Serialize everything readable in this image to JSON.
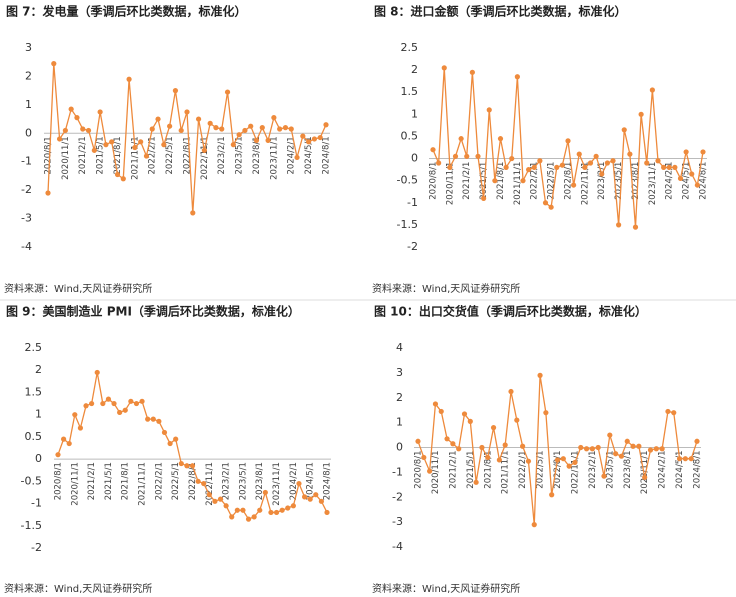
{
  "chart_data": [
    {
      "type": "line",
      "title": "图 7：发电量（季调后环比类数据，标准化）",
      "source": "资料来源：Wind,天风证券研究所",
      "categories": [
        "2020/8/1",
        null,
        null,
        "2020/11/1",
        null,
        null,
        "2021/2/1",
        null,
        null,
        "2021/5/1",
        null,
        null,
        "2021/8/1",
        null,
        null,
        "2021/11/1",
        null,
        null,
        "2022/2/1",
        null,
        null,
        "2022/5/1",
        null,
        null,
        "2022/8/1",
        null,
        null,
        "2022/11/1",
        null,
        null,
        "2023/2/1",
        null,
        null,
        "2023/5/1",
        null,
        null,
        "2023/8/1",
        null,
        null,
        "2023/11/1",
        null,
        null,
        "2024/2/1",
        null,
        null,
        "2024/5/1",
        null,
        null,
        "2024/8/1"
      ],
      "series": [
        {
          "color": "#ee8a3c",
          "values": [
            -2.1,
            2.45,
            -0.2,
            0.1,
            0.85,
            0.55,
            0.15,
            0.1,
            -0.6,
            0.75,
            -0.4,
            -0.3,
            -1.45,
            -1.6,
            1.9,
            -0.5,
            -0.3,
            -0.8,
            0.15,
            0.5,
            -0.4,
            0.25,
            1.5,
            0.1,
            0.75,
            -2.8,
            0.5,
            -0.6,
            0.35,
            0.2,
            0.15,
            1.45,
            -0.4,
            -0.05,
            0.1,
            0.25,
            -0.25,
            0.2,
            -0.25,
            0.55,
            0.15,
            0.2,
            0.15,
            -0.85,
            -0.1,
            -0.3,
            -0.2,
            -0.15,
            0.3
          ]
        }
      ],
      "ylim": [
        -4,
        3
      ],
      "yticks": [
        -4,
        -3,
        -2,
        -1,
        0,
        1,
        2,
        3
      ]
    },
    {
      "type": "line",
      "title": "图 8：进口金额（季调后环比类数据，标准化）",
      "source": "资料来源：Wind,天风证券研究所",
      "categories": [
        "2020/8/1",
        null,
        null,
        "2020/11/1",
        null,
        null,
        "2021/2/1",
        null,
        null,
        "2021/5/1",
        null,
        null,
        "2021/8/1",
        null,
        null,
        "2021/11/1",
        null,
        null,
        "2022/2/1",
        null,
        null,
        "2022/5/1",
        null,
        null,
        "2022/8/1",
        null,
        null,
        "2022/11/1",
        null,
        null,
        "2023/2/1",
        null,
        null,
        "2023/5/1",
        null,
        null,
        "2023/8/1",
        null,
        null,
        "2023/11/1",
        null,
        null,
        "2024/2/1",
        null,
        null,
        "2024/5/1",
        null,
        null,
        "2024/8/1"
      ],
      "series": [
        {
          "color": "#ee8a3c",
          "values": [
            0.2,
            -0.1,
            2.05,
            -0.2,
            0.05,
            0.45,
            0.05,
            1.95,
            0.05,
            -0.9,
            1.1,
            -0.5,
            0.45,
            -0.2,
            0.0,
            1.85,
            -0.5,
            -0.25,
            -0.2,
            -0.05,
            -1.0,
            -1.1,
            -0.2,
            -0.15,
            0.4,
            -0.6,
            0.1,
            -0.2,
            -0.1,
            0.05,
            -0.35,
            -0.1,
            -0.05,
            -1.5,
            0.65,
            0.1,
            -1.55,
            1.0,
            -0.1,
            1.55,
            -0.05,
            -0.2,
            -0.2,
            -0.2,
            -0.45,
            0.15,
            -0.35,
            -0.6,
            0.15
          ]
        }
      ],
      "ylim": [
        -2,
        2.5
      ],
      "yticks": [
        -2,
        -1.5,
        -1,
        -0.5,
        0,
        0.5,
        1,
        1.5,
        2,
        2.5
      ]
    },
    {
      "type": "line",
      "title": "图 9：美国制造业 PMI（季调后环比类数据，标准化）",
      "source": "资料来源：Wind,天风证券研究所",
      "categories": [
        "2020/8/1",
        null,
        null,
        "2020/11/1",
        null,
        null,
        "2021/2/1",
        null,
        null,
        "2021/5/1",
        null,
        null,
        "2021/8/1",
        null,
        null,
        "2021/11/1",
        null,
        null,
        "2022/2/1",
        null,
        null,
        "2022/5/1",
        null,
        null,
        "2022/8/1",
        null,
        null,
        "2022/11/1",
        null,
        null,
        "2023/2/1",
        null,
        null,
        "2023/5/1",
        null,
        null,
        "2023/8/1",
        null,
        null,
        "2023/11/1",
        null,
        null,
        "2024/2/1",
        null,
        null,
        "2024/5/1",
        null,
        null,
        "2024/8/1"
      ],
      "series": [
        {
          "color": "#ee8a3c",
          "values": [
            0.1,
            0.45,
            0.35,
            1.0,
            0.7,
            1.2,
            1.25,
            1.95,
            1.25,
            1.35,
            1.25,
            1.05,
            1.1,
            1.3,
            1.25,
            1.3,
            0.9,
            0.9,
            0.85,
            0.6,
            0.35,
            0.45,
            -0.1,
            -0.15,
            -0.15,
            -0.5,
            -0.55,
            -0.8,
            -0.95,
            -0.9,
            -1.05,
            -1.3,
            -1.15,
            -1.15,
            -1.35,
            -1.3,
            -1.15,
            -0.75,
            -1.2,
            -1.2,
            -1.15,
            -1.1,
            -1.05,
            -0.55,
            -0.85,
            -0.9,
            -0.8,
            -0.95,
            -1.2
          ]
        }
      ],
      "ylim": [
        -2,
        2.5
      ],
      "yticks": [
        -2,
        -1.5,
        -1,
        -0.5,
        0,
        0.5,
        1,
        1.5,
        2,
        2.5
      ]
    },
    {
      "type": "line",
      "title": "图 10：出口交货值（季调后环比类数据，标准化）",
      "source": "资料来源：Wind,天风证券研究所",
      "categories": [
        "2020/8/1",
        null,
        null,
        "2020/11/1",
        null,
        null,
        "2021/2/1",
        null,
        null,
        "2021/5/1",
        null,
        null,
        "2021/8/1",
        null,
        null,
        "2021/11/1",
        null,
        null,
        "2022/2/1",
        null,
        null,
        "2022/5/1",
        null,
        null,
        "2022/8/1",
        null,
        null,
        "2022/11/1",
        null,
        null,
        "2023/2/1",
        null,
        null,
        "2023/5/1",
        null,
        null,
        "2023/8/1",
        null,
        null,
        "2023/11/1",
        null,
        null,
        "2024/2/1",
        null,
        null,
        "2024/5/1",
        null,
        null,
        "2024/8/1"
      ],
      "series": [
        {
          "color": "#ee8a3c",
          "values": [
            0.25,
            -0.4,
            -0.95,
            1.75,
            1.45,
            0.35,
            0.15,
            -0.05,
            1.35,
            1.05,
            -1.4,
            0.0,
            -0.4,
            0.8,
            -0.5,
            0.1,
            2.25,
            1.1,
            0.05,
            -0.55,
            -3.1,
            2.9,
            1.4,
            -1.9,
            -0.5,
            -0.45,
            -0.75,
            -0.6,
            0.0,
            -0.05,
            -0.05,
            0.0,
            -1.15,
            0.5,
            -0.25,
            -0.35,
            0.25,
            0.05,
            0.05,
            -1.2,
            -0.1,
            -0.05,
            -0.05,
            1.45,
            1.4,
            -0.45,
            -0.45,
            -0.45,
            0.25
          ]
        }
      ],
      "ylim": [
        -4,
        4
      ],
      "yticks": [
        -4,
        -3,
        -2,
        -1,
        0,
        1,
        2,
        3,
        4
      ]
    }
  ]
}
